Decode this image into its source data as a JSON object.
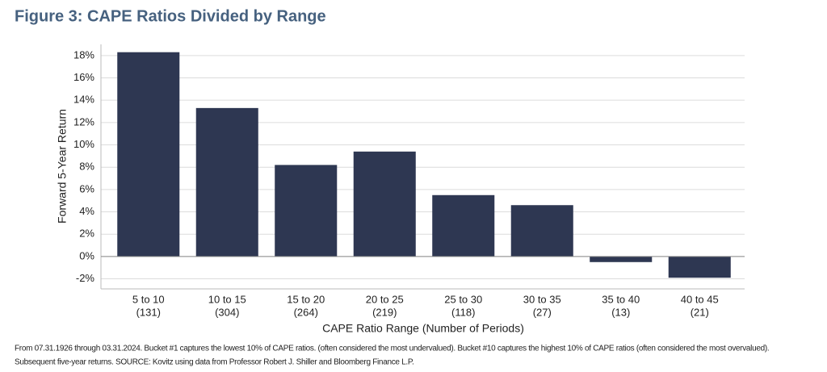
{
  "chart_data": {
    "type": "bar",
    "title": "Figure 3: CAPE Ratios Divided by Range",
    "y_label": "Forward 5-Year Return",
    "x_label": "CAPE Ratio Range (Number of Periods)",
    "categories": [
      [
        "5 to 10",
        "(131)"
      ],
      [
        "10 to 15",
        "(304)"
      ],
      [
        "15 to 20",
        "(264)"
      ],
      [
        "20 to 25",
        "(219)"
      ],
      [
        "25 to 30",
        "(118)"
      ],
      [
        "30 to 35",
        "(27)"
      ],
      [
        "35 to 40",
        "(13)"
      ],
      [
        "40 to 45",
        "(21)"
      ]
    ],
    "values": [
      18.3,
      13.3,
      8.2,
      9.4,
      5.5,
      4.6,
      -0.5,
      -1.9
    ],
    "color": "#2e3752",
    "ylim": [
      -2.9,
      19.0
    ],
    "yticks": [
      {
        "value": -2,
        "label": "-2%"
      },
      {
        "value": 0,
        "label": "0%"
      },
      {
        "value": 2,
        "label": "2%"
      },
      {
        "value": 4,
        "label": "4%"
      },
      {
        "value": 6,
        "label": "6%"
      },
      {
        "value": 8,
        "label": "8%"
      },
      {
        "value": 10,
        "label": "10%"
      },
      {
        "value": 12,
        "label": "12%"
      },
      {
        "value": 14,
        "label": "14%"
      },
      {
        "value": 16,
        "label": "16%"
      },
      {
        "value": 18,
        "label": "18%"
      }
    ],
    "grid": true,
    "notes": [
      "From 07.31.1926 through 03.31.2024. Bucket #1 captures the lowest 10% of CAPE ratios. (often considered the most undervalued). Bucket #10 captures the highest 10% of CAPE ratios (often considered the most overvalued).",
      "Subsequent five-year returns. SOURCE: Kovitz using data from Professor Robert J. Shiller and Bloomberg Finance L.P."
    ]
  }
}
